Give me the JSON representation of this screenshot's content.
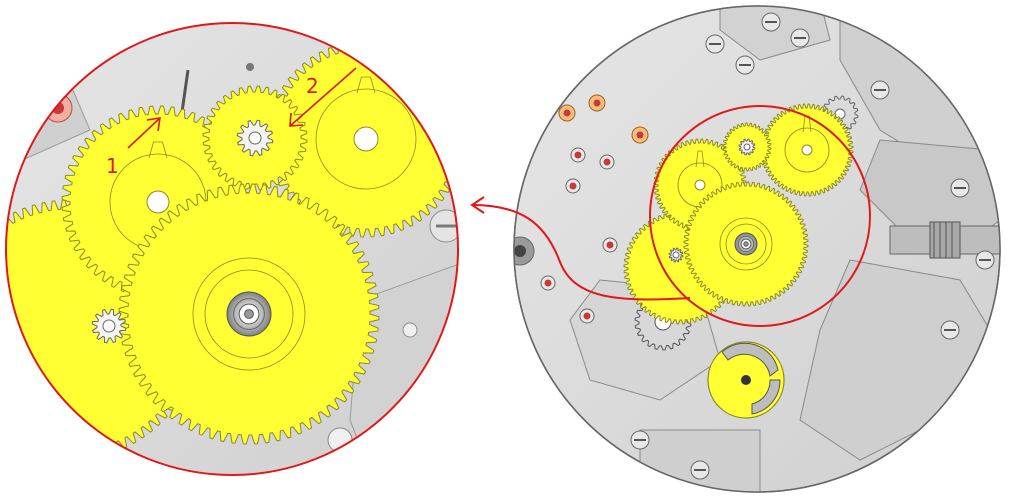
{
  "annotations": {
    "arrow_1_label": "1",
    "arrow_2_label": "2"
  },
  "colors": {
    "gear_fill": "#ffff33",
    "gear_stroke": "#8a8a20",
    "plate": "#d8d8d8",
    "plate_dark": "#bdbdbd",
    "highlight": "#e01818",
    "jewel": "#c83a3a"
  },
  "gears": [
    {
      "id": "third-wheel",
      "teeth": 56
    },
    {
      "id": "fourth-wheel",
      "teeth": 60
    },
    {
      "id": "center-wheel",
      "teeth": 72
    },
    {
      "id": "escape-pinion",
      "teeth": 12
    },
    {
      "id": "lower-wheel",
      "teeth": 60
    }
  ]
}
